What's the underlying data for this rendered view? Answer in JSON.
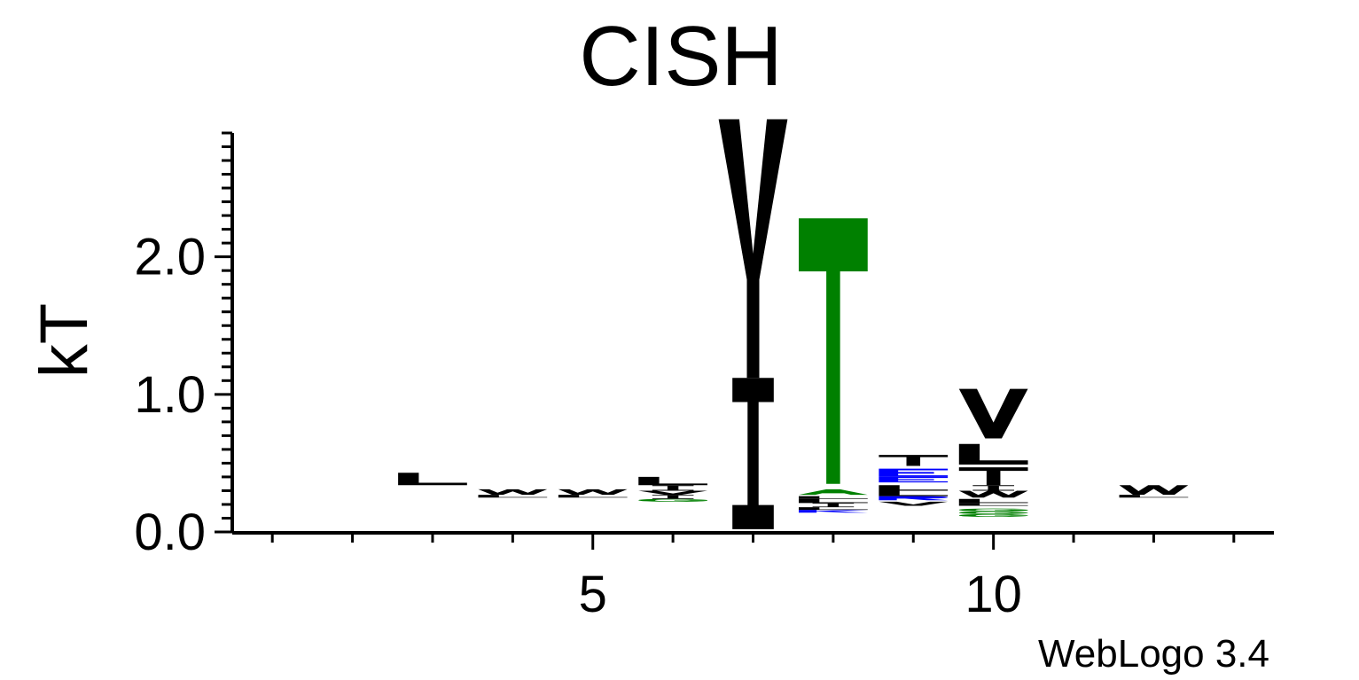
{
  "chart_data": {
    "type": "sequence-logo",
    "title": "CISH",
    "ylabel": "kT",
    "xlabel": "",
    "credit": "WebLogo 3.4",
    "ylim": [
      0,
      2.9
    ],
    "xlim": [
      0.5,
      13.5
    ],
    "y_ticks": [
      {
        "value": 0,
        "label": "0.0"
      },
      {
        "value": 1,
        "label": "1.0"
      },
      {
        "value": 2,
        "label": "2.0"
      }
    ],
    "x_ticks": [
      {
        "value": 5,
        "label": "5"
      },
      {
        "value": 10,
        "label": "10"
      }
    ],
    "positions": [
      {
        "pos": 3,
        "stack": [
          {
            "letter": "L",
            "color": "#000000",
            "bottom": 0.34,
            "top": 0.43
          }
        ]
      },
      {
        "pos": 4,
        "stack": [
          {
            "letter": "L",
            "color": "#000000",
            "bottom": 0.25,
            "top": 0.27
          },
          {
            "letter": "W",
            "color": "#000000",
            "bottom": 0.27,
            "top": 0.31
          }
        ]
      },
      {
        "pos": 5,
        "stack": [
          {
            "letter": "L",
            "color": "#000000",
            "bottom": 0.25,
            "top": 0.27
          },
          {
            "letter": "W",
            "color": "#000000",
            "bottom": 0.27,
            "top": 0.31
          }
        ]
      },
      {
        "pos": 6,
        "stack": [
          {
            "letter": "G",
            "color": "#008000",
            "bottom": 0.22,
            "top": 0.24
          },
          {
            "letter": "I",
            "color": "#000000",
            "bottom": 0.24,
            "top": 0.27
          },
          {
            "letter": "V",
            "color": "#000000",
            "bottom": 0.27,
            "top": 0.3
          },
          {
            "letter": "I",
            "color": "#000000",
            "bottom": 0.3,
            "top": 0.34
          },
          {
            "letter": "L",
            "color": "#000000",
            "bottom": 0.34,
            "top": 0.4
          }
        ]
      },
      {
        "pos": 7,
        "stack": [
          {
            "letter": "I",
            "color": "#000000",
            "bottom": 0.02,
            "top": 1.12
          },
          {
            "letter": "Y",
            "color": "#000000",
            "bottom": 1.12,
            "top": 3.0
          }
        ]
      },
      {
        "pos": 8,
        "stack": [
          {
            "letter": "K",
            "color": "#0000ff",
            "bottom": 0.14,
            "top": 0.16
          },
          {
            "letter": "L",
            "color": "#000000",
            "bottom": 0.16,
            "top": 0.18
          },
          {
            "letter": "I",
            "color": "#000000",
            "bottom": 0.18,
            "top": 0.21
          },
          {
            "letter": "L",
            "color": "#000000",
            "bottom": 0.21,
            "top": 0.24
          },
          {
            "letter": "L",
            "color": "#000000",
            "bottom": 0.24,
            "top": 0.26
          },
          {
            "letter": "A",
            "color": "#008000",
            "bottom": 0.27,
            "top": 0.31
          },
          {
            "letter": "T",
            "color": "#008000",
            "bottom": 0.35,
            "top": 2.28
          }
        ]
      },
      {
        "pos": 9,
        "stack": [
          {
            "letter": "V",
            "color": "#000000",
            "bottom": 0.19,
            "top": 0.22
          },
          {
            "letter": "R",
            "color": "#0000ff",
            "bottom": 0.23,
            "top": 0.26
          },
          {
            "letter": "L",
            "color": "#000000",
            "bottom": 0.26,
            "top": 0.3
          },
          {
            "letter": "L",
            "color": "#000000",
            "bottom": 0.3,
            "top": 0.34
          },
          {
            "letter": "E",
            "color": "#0000ff",
            "bottom": 0.36,
            "top": 0.4
          },
          {
            "letter": "E",
            "color": "#0000ff",
            "bottom": 0.4,
            "top": 0.46
          },
          {
            "letter": "T",
            "color": "#000000",
            "bottom": 0.48,
            "top": 0.56
          }
        ]
      },
      {
        "pos": 10,
        "stack": [
          {
            "letter": "G",
            "color": "#008000",
            "bottom": 0.11,
            "top": 0.13
          },
          {
            "letter": "G",
            "color": "#008000",
            "bottom": 0.13,
            "top": 0.15
          },
          {
            "letter": "G",
            "color": "#008000",
            "bottom": 0.15,
            "top": 0.17
          },
          {
            "letter": "L",
            "color": "#000000",
            "bottom": 0.19,
            "top": 0.21
          },
          {
            "letter": "L",
            "color": "#000000",
            "bottom": 0.21,
            "top": 0.24
          },
          {
            "letter": "W",
            "color": "#000000",
            "bottom": 0.25,
            "top": 0.3
          },
          {
            "letter": "I",
            "color": "#000000",
            "bottom": 0.3,
            "top": 0.34
          },
          {
            "letter": "T",
            "color": "#000000",
            "bottom": 0.34,
            "top": 0.47
          },
          {
            "letter": "L",
            "color": "#000000",
            "bottom": 0.49,
            "top": 0.64
          },
          {
            "letter": "V",
            "color": "#000000",
            "bottom": 0.68,
            "top": 1.04
          }
        ]
      },
      {
        "pos": 12,
        "stack": [
          {
            "letter": "L",
            "color": "#000000",
            "bottom": 0.25,
            "top": 0.27
          },
          {
            "letter": "W",
            "color": "#000000",
            "bottom": 0.27,
            "top": 0.34
          }
        ]
      }
    ]
  }
}
